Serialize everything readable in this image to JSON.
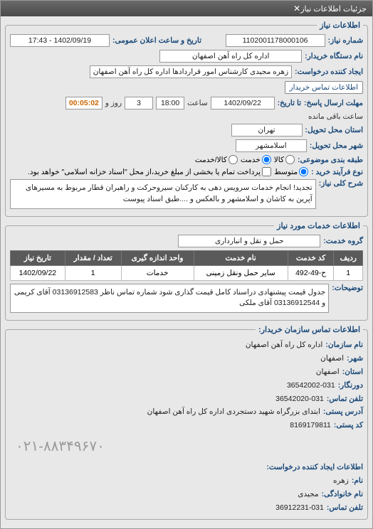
{
  "window": {
    "title": "جزئیات اطلاعات نیاز"
  },
  "sec_main": {
    "legend": "اطلاعات نیاز",
    "need_no_label": "شماره نیاز:",
    "need_no": "1102001178000106",
    "announce_label": "تاریخ و ساعت اعلان عمومی:",
    "announce": "1402/09/19 - 17:43",
    "buyer_label": "نام دستگاه خریدار:",
    "buyer": "اداره کل راه آهن اصفهان",
    "creator_label": "ایجاد کننده درخواست:",
    "creator": "زهره مجیدی کارشناس امور قراردادها اداره کل راه آهن اصفهان",
    "buyer_contact_btn": "اطلاعات تماس خریدار",
    "deadline_label": "مهلت ارسال پاسخ:",
    "to_label": "تا تاریخ:",
    "deadline_date": "1402/09/22",
    "time_label": "ساعت",
    "deadline_time": "18:00",
    "days": "3",
    "days_label": "روز و",
    "remain": "00:05:02",
    "remain_label": "ساعت باقی مانده",
    "province_label": "استان محل تحویل:",
    "province": "تهران",
    "city_label": "شهر محل تحویل:",
    "city": "اسلامشهر",
    "pkg_label": "طبقه بندی موضوعی:",
    "pkg_goods": "کالا",
    "pkg_service": "خدمت",
    "pkg_both": "کالا/خدمت",
    "proc_label": "نوع فرآیند خرید :",
    "proc_mid": "متوسط",
    "proc_note": "پرداخت تمام یا بخشی از مبلغ خرید،از محل \"اسناد خزانه اسلامی\" خواهد بود.",
    "desc_label": "شرح کلی نیاز:",
    "desc": "تجدید! انجام خدمات سرویس دهی به کارکنان سیروحرکت و راهبران قطار مربوط به مسیرهای آپرین به کاشان و اسلامشهر و بالعکس و ....طبق اسناد پیوست"
  },
  "sec_service": {
    "legend": "اطلاعات خدمات مورد نیاز",
    "group_label": "گروه خدمت:",
    "group": "حمل و نقل و انبارداری",
    "table": {
      "headers": [
        "ردیف",
        "کد خدمت",
        "نام خدمت",
        "واحد اندازه گیری",
        "تعداد / مقدار",
        "تاریخ نیاز"
      ],
      "rows": [
        [
          "1",
          "ح-49-492",
          "سایر حمل ونقل زمینی",
          "خدمات",
          "1",
          "1402/09/22"
        ]
      ]
    },
    "notes_label": "توضیحات:",
    "notes": "جدول قیمت پیشنهادی دراسناد کامل قیمت گذاری شود شماره تماس ناظر 03136912583 آقای کریمی و 03136912544 آقای ملکی"
  },
  "sec_contact": {
    "legend": "اطلاعات تماس سازمان خریدار:",
    "org_label": "نام سازمان:",
    "org": "اداره کل راه آهن اصفهان",
    "prov_label": "شهر:",
    "prov": "اصفهان",
    "ostan_label": "استان:",
    "ostan": "اصفهان",
    "fax_label": "دورنگار:",
    "fax": "36542002-031",
    "tel_label": "تلفن تماس:",
    "tel": "36542020-031",
    "addr_label": "آدرس پستی:",
    "addr": "ابتدای بزرگراه شهید دستجردی اداره کل راه آهن اصفهان",
    "post_label": "کد پستی:",
    "post": "8169179811",
    "creator_hdr": "اطلاعات ایجاد کننده درخواست:",
    "name_label": "نام:",
    "name": "زهره",
    "lname_label": "نام خانوادگی:",
    "lname": "مجیدی",
    "ctel_label": "تلفن تماس:",
    "ctel": "36912231-031",
    "bigphone": "۰۲۱-۸۸۳۴۹۶۷۰"
  }
}
